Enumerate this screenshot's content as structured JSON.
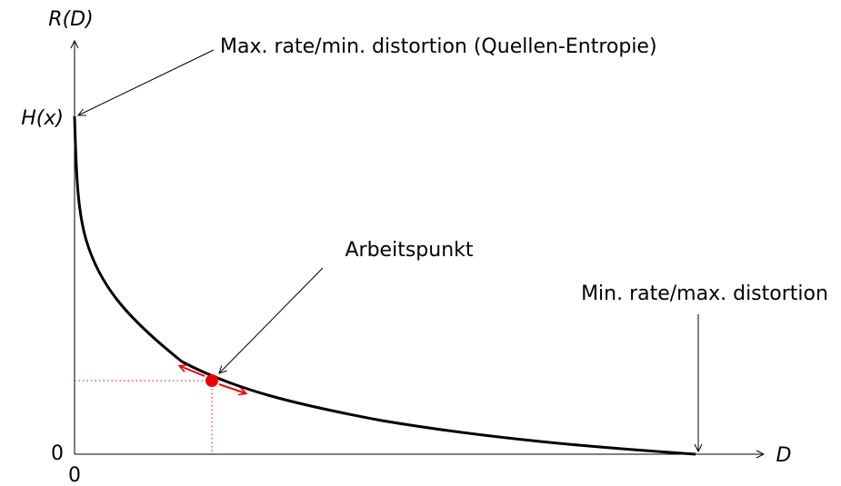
{
  "axes": {
    "y_label": "R(D)",
    "x_label": "D",
    "y_max_label": "H(x)",
    "y_zero": "0",
    "x_zero": "0"
  },
  "annotations": {
    "max": "Max. rate/min. distortion (Quellen-Entropie)",
    "operating_point": "Arbeitspunkt",
    "min": "Min. rate/max. distortion"
  }
}
